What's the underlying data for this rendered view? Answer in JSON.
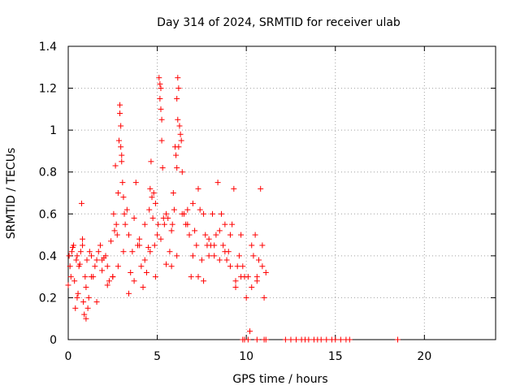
{
  "chart_data": {
    "type": "scatter",
    "title": "Day 314 of 2024, SRMTID for receiver ulab",
    "xlabel": "GPS time / hours",
    "ylabel": "SRMTID / TECUs",
    "xlim": [
      0,
      24
    ],
    "ylim": [
      0,
      1.4
    ],
    "xticks": [
      "0",
      "5",
      "10",
      "15",
      "20"
    ],
    "yticks": [
      "0",
      "0.2",
      "0.4",
      "0.6",
      "0.8",
      "1",
      "1.2",
      "1.4"
    ],
    "grid": true,
    "marker": "+",
    "color": "#ff0000",
    "series": [
      {
        "name": "SRMTID",
        "x": [
          0.0,
          0.1,
          0.15,
          0.2,
          0.3,
          0.35,
          0.4,
          0.45,
          0.5,
          0.55,
          0.6,
          0.65,
          0.7,
          0.75,
          0.8,
          0.85,
          0.9,
          0.95,
          1.0,
          1.05,
          1.1,
          1.15,
          1.2,
          1.3,
          1.4,
          1.5,
          1.6,
          1.7,
          1.8,
          1.9,
          2.0,
          2.1,
          2.2,
          2.3,
          2.4,
          2.5,
          2.55,
          2.6,
          2.65,
          2.7,
          2.75,
          2.8,
          2.85,
          2.9,
          2.95,
          3.0,
          3.05,
          3.1,
          3.15,
          3.2,
          3.3,
          3.4,
          3.5,
          3.6,
          3.7,
          3.8,
          3.9,
          4.0,
          4.1,
          4.2,
          4.3,
          4.4,
          4.5,
          4.55,
          4.6,
          4.65,
          4.7,
          4.75,
          4.8,
          4.85,
          4.9,
          5.0,
          5.05,
          5.1,
          5.15,
          5.2,
          5.25,
          5.3,
          5.35,
          5.4,
          5.5,
          5.6,
          5.7,
          5.8,
          5.85,
          5.9,
          5.95,
          6.0,
          6.05,
          6.1,
          6.15,
          6.2,
          6.25,
          6.3,
          6.35,
          6.4,
          6.5,
          6.6,
          6.7,
          6.8,
          6.9,
          7.0,
          7.1,
          7.2,
          7.3,
          7.4,
          7.5,
          7.6,
          7.7,
          7.8,
          7.9,
          8.0,
          8.1,
          8.2,
          8.3,
          8.4,
          8.5,
          8.6,
          8.7,
          8.8,
          8.9,
          9.0,
          9.1,
          9.2,
          9.3,
          9.4,
          9.5,
          9.6,
          9.7,
          9.8,
          9.9,
          10.0,
          10.1,
          10.2,
          10.3,
          10.4,
          10.5,
          10.6,
          10.7,
          10.8,
          10.9,
          11.0,
          11.1,
          0.05,
          0.25,
          0.5,
          0.8,
          1.0,
          1.3,
          1.6,
          1.9,
          2.2,
          2.5,
          2.8,
          3.1,
          3.4,
          3.7,
          4.0,
          4.3,
          4.6,
          4.9,
          5.2,
          5.5,
          5.8,
          6.1,
          6.4,
          6.7,
          7.0,
          7.3,
          7.6,
          7.9,
          8.2,
          8.5,
          8.8,
          9.1,
          9.4,
          9.7,
          10.3,
          10.6,
          10.9,
          2.9,
          2.95,
          3.0,
          5.15,
          5.2,
          5.25,
          6.1,
          6.15,
          6.2,
          10.1,
          10.6,
          9.8,
          9.9,
          11.0,
          11.1,
          12.2,
          12.5,
          12.8,
          13.1,
          13.3,
          13.5,
          13.8,
          14.0,
          14.2,
          14.5,
          14.8,
          15.0,
          15.3,
          15.6,
          15.8,
          18.5
        ],
        "y": [
          0.26,
          0.35,
          0.3,
          0.42,
          0.45,
          0.28,
          0.15,
          0.38,
          0.4,
          0.22,
          0.35,
          0.36,
          0.42,
          0.65,
          0.45,
          0.18,
          0.12,
          0.3,
          0.25,
          0.38,
          0.15,
          0.2,
          0.42,
          0.4,
          0.3,
          0.35,
          0.38,
          0.42,
          0.45,
          0.33,
          0.39,
          0.4,
          0.35,
          0.28,
          0.47,
          0.3,
          0.6,
          0.52,
          0.83,
          0.55,
          0.5,
          0.7,
          0.95,
          1.12,
          0.92,
          0.85,
          0.75,
          0.68,
          0.6,
          0.55,
          0.62,
          0.5,
          0.32,
          0.42,
          0.58,
          0.75,
          0.45,
          0.48,
          0.35,
          0.25,
          0.55,
          0.32,
          0.44,
          0.62,
          0.72,
          0.85,
          0.68,
          0.58,
          0.7,
          0.45,
          0.65,
          0.5,
          0.55,
          1.25,
          1.15,
          1.2,
          1.05,
          0.82,
          0.58,
          0.55,
          0.6,
          0.58,
          0.42,
          0.35,
          0.55,
          0.7,
          0.62,
          0.92,
          0.88,
          0.82,
          1.25,
          1.2,
          1.02,
          0.98,
          0.95,
          0.8,
          0.6,
          0.55,
          0.62,
          0.5,
          0.3,
          0.65,
          0.52,
          0.45,
          0.72,
          0.62,
          0.38,
          0.28,
          0.5,
          0.45,
          0.4,
          0.45,
          0.6,
          0.45,
          0.5,
          0.75,
          0.52,
          0.6,
          0.45,
          0.55,
          0.38,
          0.42,
          0.5,
          0.55,
          0.72,
          0.28,
          0.35,
          0.4,
          0.3,
          0.35,
          0.3,
          0.2,
          0.3,
          0.04,
          0.25,
          0.4,
          0.5,
          0.28,
          0.38,
          0.72,
          0.45,
          0.2,
          0.32,
          0.4,
          0.44,
          0.2,
          0.48,
          0.1,
          0.3,
          0.18,
          0.38,
          0.26,
          0.3,
          0.35,
          0.42,
          0.22,
          0.28,
          0.45,
          0.38,
          0.42,
          0.3,
          0.48,
          0.36,
          0.52,
          0.4,
          0.6,
          0.55,
          0.4,
          0.3,
          0.6,
          0.48,
          0.4,
          0.38,
          0.42,
          0.35,
          0.25,
          0.5,
          0.45,
          0.3,
          0.35,
          1.08,
          1.02,
          0.88,
          1.22,
          1.1,
          0.95,
          1.15,
          1.05,
          0.92,
          0.0,
          0.0,
          0.0,
          0.0,
          0.0,
          0.0,
          0.0,
          0.0,
          0.0,
          0.0,
          0.0,
          0.0,
          0.0,
          0.0,
          0.0,
          0.0,
          0.0,
          0.0,
          0.0,
          0.0,
          0.0,
          0.0
        ]
      }
    ]
  }
}
